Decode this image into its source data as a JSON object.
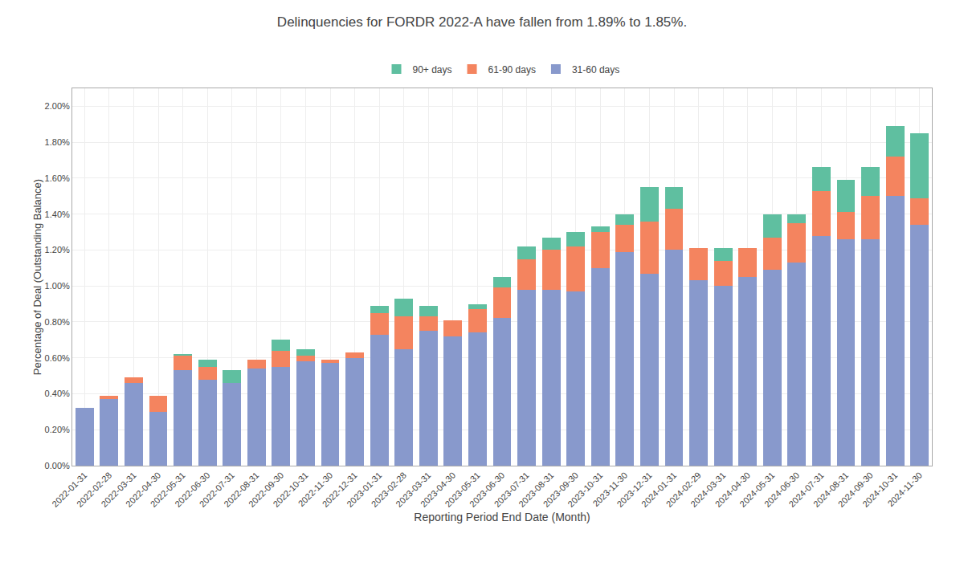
{
  "chart_data": {
    "type": "bar",
    "stacked": true,
    "title": "Delinquencies for FORDR 2022-A have fallen from 1.89% to 1.85%.",
    "xlabel": "Reporting Period End Date (Month)",
    "ylabel": "Percentage of Deal (Outstanding Balance)",
    "categories": [
      "2022-01-31",
      "2022-02-28",
      "2022-03-31",
      "2022-04-30",
      "2022-05-31",
      "2022-06-30",
      "2022-07-31",
      "2022-08-31",
      "2022-09-30",
      "2022-10-31",
      "2022-11-30",
      "2022-12-31",
      "2023-01-31",
      "2023-02-28",
      "2023-03-31",
      "2023-04-30",
      "2023-05-31",
      "2023-06-30",
      "2023-07-31",
      "2023-08-31",
      "2023-09-30",
      "2023-10-31",
      "2023-11-30",
      "2023-12-31",
      "2024-01-31",
      "2024-02-29",
      "2024-03-31",
      "2024-04-30",
      "2024-05-31",
      "2024-06-30",
      "2024-07-31",
      "2024-08-31",
      "2024-09-30",
      "2024-10-31",
      "2024-11-30"
    ],
    "series": [
      {
        "name": "31-60 days",
        "color": "#8899cc",
        "values": [
          0.0032,
          0.0037,
          0.0046,
          0.003,
          0.0053,
          0.0048,
          0.0046,
          0.0054,
          0.0055,
          0.0058,
          0.0057,
          0.006,
          0.0073,
          0.0065,
          0.0075,
          0.0072,
          0.0074,
          0.0082,
          0.0098,
          0.0098,
          0.0097,
          0.011,
          0.0119,
          0.0107,
          0.012,
          0.0103,
          0.01,
          0.0105,
          0.0109,
          0.0113,
          0.0128,
          0.0126,
          0.0126,
          0.015,
          0.0134
        ]
      },
      {
        "name": "61-90 days",
        "color": "#f4845f",
        "values": [
          0.0,
          0.0002,
          0.0003,
          0.0009,
          0.0008,
          0.0007,
          0.0,
          0.0005,
          0.0009,
          0.0003,
          0.0002,
          0.0003,
          0.0012,
          0.0018,
          0.0008,
          0.0009,
          0.0013,
          0.0017,
          0.0017,
          0.0022,
          0.0025,
          0.002,
          0.0015,
          0.0029,
          0.0023,
          0.0018,
          0.0014,
          0.0016,
          0.0018,
          0.0022,
          0.0025,
          0.0015,
          0.0024,
          0.0022,
          0.0015
        ]
      },
      {
        "name": "90+ days",
        "color": "#5fbfa0",
        "values": [
          0.0,
          0.0,
          0.0,
          0.0,
          0.0001,
          0.0004,
          0.0007,
          0.0,
          0.0006,
          0.0004,
          0.0,
          0.0,
          0.0004,
          0.001,
          0.0006,
          0.0,
          0.0003,
          0.0006,
          0.0007,
          0.0007,
          0.0008,
          0.0003,
          0.0006,
          0.0019,
          0.0012,
          0.0,
          0.0007,
          0.0,
          0.0013,
          0.0005,
          0.0013,
          0.0018,
          0.0016,
          0.0017,
          0.0036
        ]
      }
    ],
    "ylim": [
      0.0,
      0.021
    ],
    "yticks": [
      {
        "value": 0.0,
        "label": "0.00%"
      },
      {
        "value": 0.002,
        "label": "0.20%"
      },
      {
        "value": 0.004,
        "label": "0.40%"
      },
      {
        "value": 0.006,
        "label": "0.60%"
      },
      {
        "value": 0.008,
        "label": "0.80%"
      },
      {
        "value": 0.01,
        "label": "1.00%"
      },
      {
        "value": 0.012,
        "label": "1.20%"
      },
      {
        "value": 0.014,
        "label": "1.40%"
      },
      {
        "value": 0.016,
        "label": "1.60%"
      },
      {
        "value": 0.018,
        "label": "1.80%"
      },
      {
        "value": 0.02,
        "label": "2.00%"
      }
    ],
    "grid": true,
    "legend": "top"
  }
}
